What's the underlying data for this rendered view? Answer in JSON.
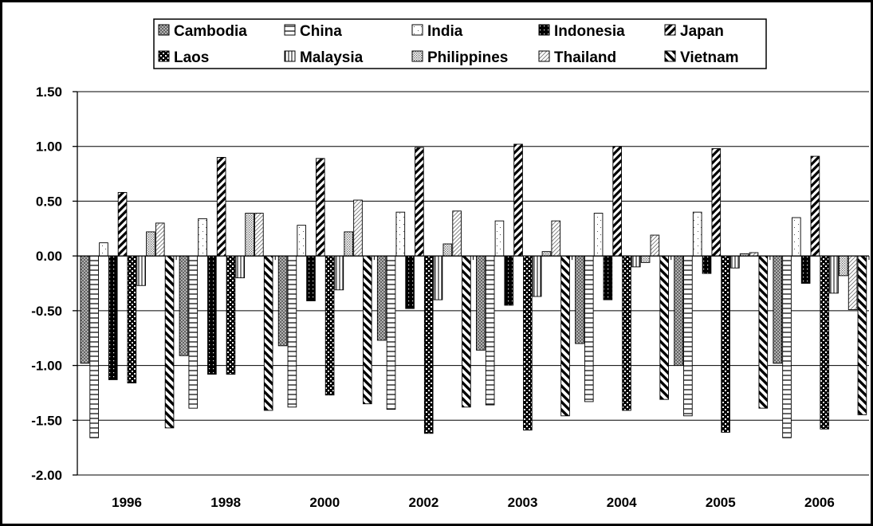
{
  "chart_data": {
    "type": "bar",
    "title": "",
    "xlabel": "",
    "ylabel": "",
    "ylim": [
      -2.0,
      1.5
    ],
    "yticks": [
      "1.50",
      "1.00",
      "0.50",
      "0.00",
      "-0.50",
      "-1.00",
      "-1.50",
      "-2.00"
    ],
    "ytick_values": [
      1.5,
      1.0,
      0.5,
      0.0,
      -0.5,
      -1.0,
      -1.5,
      -2.0
    ],
    "grid": "horizontal",
    "legend_position": "top",
    "categories": [
      "1996",
      "1998",
      "2000",
      "2002",
      "2003",
      "2004",
      "2005",
      "2006"
    ],
    "series": [
      {
        "name": "Cambodia",
        "pattern": "crosshatch-fine",
        "values": [
          -0.98,
          -0.91,
          -0.82,
          -0.77,
          -0.86,
          -0.8,
          -1.0,
          -0.98
        ]
      },
      {
        "name": "China",
        "pattern": "hlines",
        "values": [
          -1.66,
          -1.39,
          -1.38,
          -1.4,
          -1.36,
          -1.33,
          -1.46,
          -1.66
        ]
      },
      {
        "name": "India",
        "pattern": "dots-sparse",
        "values": [
          0.12,
          0.34,
          0.28,
          0.4,
          0.32,
          0.39,
          0.4,
          0.35
        ]
      },
      {
        "name": "Indonesia",
        "pattern": "black-dots",
        "values": [
          -1.13,
          -1.08,
          -0.41,
          -0.48,
          -0.45,
          -0.4,
          -0.16,
          -0.25
        ]
      },
      {
        "name": "Japan",
        "pattern": "diag-thick",
        "values": [
          0.58,
          0.9,
          0.89,
          0.99,
          1.02,
          1.0,
          0.98,
          0.91
        ]
      },
      {
        "name": "Laos",
        "pattern": "checker",
        "values": [
          -1.16,
          -1.08,
          -1.27,
          -1.62,
          -1.59,
          -1.41,
          -1.61,
          -1.58
        ]
      },
      {
        "name": "Malaysia",
        "pattern": "vlines",
        "values": [
          -0.27,
          -0.2,
          -0.31,
          -0.4,
          -0.37,
          -0.1,
          -0.11,
          -0.34
        ]
      },
      {
        "name": "Philippines",
        "pattern": "dots-dense",
        "values": [
          0.22,
          0.39,
          0.22,
          0.11,
          0.04,
          -0.06,
          0.02,
          -0.18
        ]
      },
      {
        "name": "Thailand",
        "pattern": "diag-thin",
        "values": [
          0.3,
          0.39,
          0.51,
          0.41,
          0.32,
          0.19,
          0.03,
          -0.49
        ]
      },
      {
        "name": "Vietnam",
        "pattern": "backdiag-thick",
        "values": [
          -1.57,
          -1.41,
          -1.35,
          -1.38,
          -1.46,
          -1.31,
          -1.39,
          -1.45
        ]
      }
    ]
  }
}
